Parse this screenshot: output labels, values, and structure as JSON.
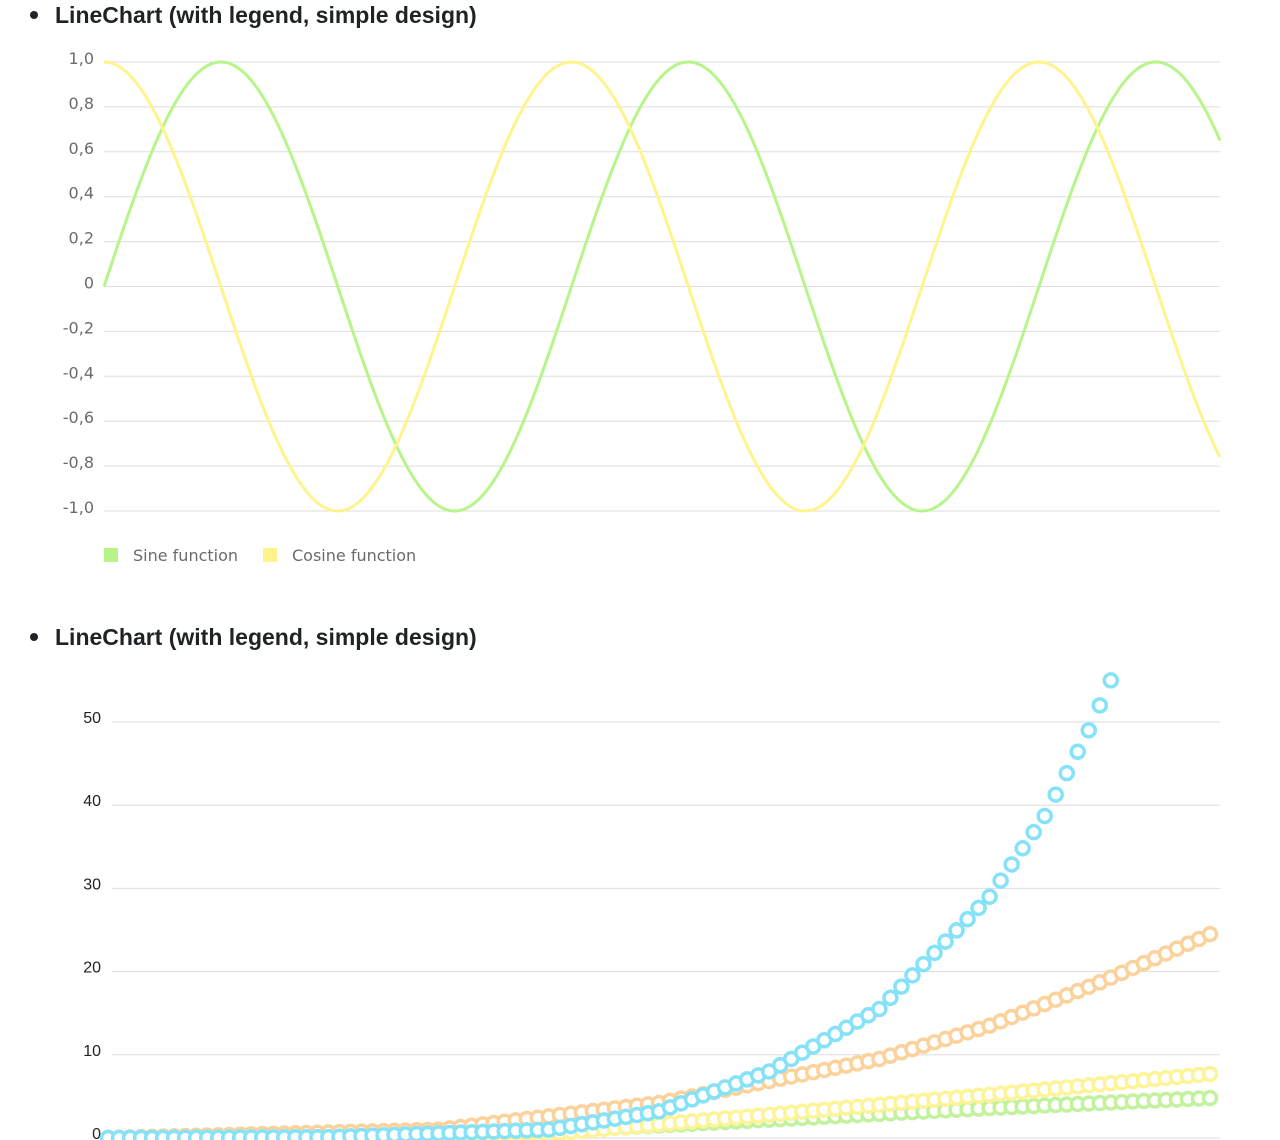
{
  "items": [
    {
      "label": "LineChart (with legend, simple design)"
    },
    {
      "label": "LineChart (with legend, simple design)"
    }
  ],
  "chart_data": [
    {
      "type": "line",
      "title": "",
      "xlabel": "",
      "ylabel": "",
      "ylim": [
        -1.0,
        1.0
      ],
      "y_ticks": [
        "1,0",
        "0,8",
        "0,6",
        "0,4",
        "0,2",
        "0",
        "-0,2",
        "-0,4",
        "-0,6",
        "-0,8",
        "-1,0"
      ],
      "y_tick_values": [
        1.0,
        0.8,
        0.6,
        0.4,
        0.2,
        0,
        -0.2,
        -0.4,
        -0.6,
        -0.8,
        -1.0
      ],
      "grid": true,
      "legend_position": "bottom-left",
      "x_range": [
        0,
        15
      ],
      "series": [
        {
          "name": "Sine function",
          "function": "sin",
          "color": "#b7f58a"
        },
        {
          "name": "Cosine function",
          "function": "cos",
          "color": "#fff48c"
        }
      ]
    },
    {
      "type": "line",
      "title": "",
      "xlabel": "",
      "ylabel": "",
      "ylim": [
        0,
        50
      ],
      "y_ticks": [
        "0",
        "10",
        "20",
        "30",
        "40",
        "50"
      ],
      "y_tick_values": [
        0,
        10,
        20,
        30,
        40,
        50
      ],
      "grid": true,
      "markers": "hollow-circle",
      "points_per_series": 101,
      "series": [
        {
          "color": "#85e2f8",
          "values_at": {
            "0": 0,
            "20": 0.1,
            "40": 1.0,
            "50": 3.2,
            "60": 8.0,
            "70": 15.5,
            "80": 29.0,
            "85": 38.7,
            "89": 49.0,
            "91": 55.0
          }
        },
        {
          "color": "#fbd29c",
          "values_at": {
            "0": 0,
            "30": 1.0,
            "50": 4.2,
            "70": 9.5,
            "80": 13.5,
            "90": 18.7,
            "100": 24.5
          }
        },
        {
          "color": "#fdf49a",
          "values_at": {
            "0": 0,
            "40": 0.5,
            "60": 2.8,
            "80": 5.2,
            "100": 7.7
          }
        },
        {
          "color": "#c3f29e",
          "values_at": {
            "0": 0,
            "40": 0.8,
            "60": 2.2,
            "80": 3.6,
            "100": 4.8
          }
        }
      ]
    }
  ]
}
